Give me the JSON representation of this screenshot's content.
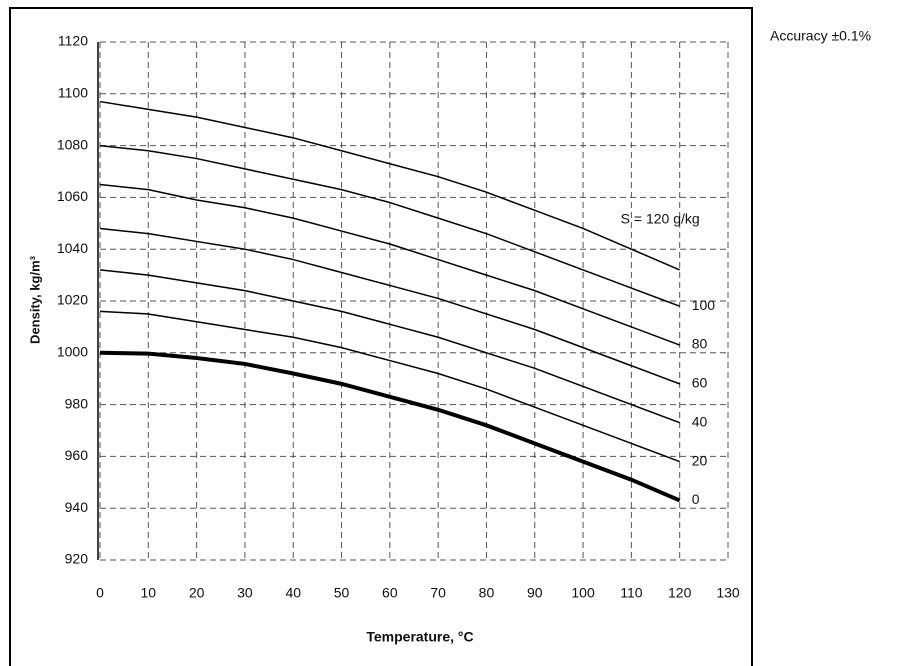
{
  "chart_data": {
    "type": "line",
    "xlabel": "Temperature, °C",
    "ylabel": "Density, kg/m³",
    "annotation": "Accuracy   ±0.1%",
    "x": [
      0,
      10,
      20,
      30,
      40,
      50,
      60,
      70,
      80,
      90,
      100,
      110,
      120
    ],
    "series": [
      {
        "name": "0",
        "color": "#000000",
        "width": 4,
        "values": [
          1000,
          999.7,
          998,
          995.7,
          992,
          988,
          983,
          978,
          972,
          965,
          958,
          951,
          943
        ]
      },
      {
        "name": "20",
        "color": "#000000",
        "width": 1.5,
        "values": [
          1016,
          1015,
          1012,
          1009,
          1006,
          1002,
          997,
          992,
          986,
          979,
          972,
          965,
          958
        ]
      },
      {
        "name": "40",
        "color": "#000000",
        "width": 1.5,
        "values": [
          1032,
          1030,
          1027,
          1024,
          1020,
          1016,
          1011,
          1006,
          1000,
          994,
          987,
          980,
          973
        ]
      },
      {
        "name": "60",
        "color": "#000000",
        "width": 1.5,
        "values": [
          1048,
          1046,
          1043,
          1040,
          1036,
          1031,
          1026,
          1021,
          1015,
          1009,
          1002,
          995,
          988
        ]
      },
      {
        "name": "80",
        "color": "#000000",
        "width": 1.5,
        "values": [
          1065,
          1063,
          1059,
          1056,
          1052,
          1047,
          1042,
          1036,
          1030,
          1024,
          1017,
          1010,
          1003
        ]
      },
      {
        "name": "100",
        "color": "#000000",
        "width": 1.5,
        "values": [
          1080,
          1078,
          1075,
          1071,
          1067,
          1063,
          1058,
          1052,
          1046,
          1039,
          1032,
          1025,
          1018
        ]
      },
      {
        "name": "S = 120 g/kg",
        "color": "#000000",
        "width": 1.5,
        "values": [
          1097,
          1094,
          1091,
          1087,
          1083,
          1078,
          1073,
          1068,
          1062,
          1055,
          1048,
          1040,
          1032
        ]
      }
    ],
    "xlim": [
      0,
      130
    ],
    "xticks": [
      0,
      10,
      20,
      30,
      40,
      50,
      60,
      70,
      80,
      90,
      100,
      110,
      120,
      130
    ],
    "ylim": [
      920,
      1120
    ],
    "yticks": [
      920,
      940,
      960,
      980,
      1000,
      1020,
      1040,
      1060,
      1080,
      1100,
      1120
    ],
    "grid": true
  }
}
